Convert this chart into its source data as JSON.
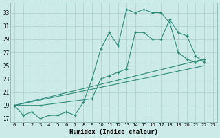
{
  "xlabel": "Humidex (Indice chaleur)",
  "bg_color": "#cceae7",
  "grid_color": "#aacfcc",
  "line_color": "#2e8b7a",
  "xlim": [
    -0.5,
    23.5
  ],
  "ylim": [
    16.5,
    34.5
  ],
  "yticks": [
    17,
    19,
    21,
    23,
    25,
    27,
    29,
    31,
    33
  ],
  "xticks": [
    0,
    1,
    2,
    3,
    4,
    5,
    6,
    7,
    8,
    9,
    10,
    11,
    12,
    13,
    14,
    15,
    16,
    17,
    18,
    19,
    20,
    21,
    22,
    23
  ],
  "series1": {
    "x": [
      0,
      1,
      2,
      3,
      4,
      5,
      6,
      7,
      8,
      9,
      10,
      11,
      12,
      13,
      14,
      15,
      16,
      17,
      18,
      19,
      20,
      21,
      22
    ],
    "y": [
      19,
      17.5,
      18,
      17,
      17.5,
      17.5,
      18,
      17.5,
      19.5,
      23,
      27.5,
      30,
      28,
      33.5,
      33,
      33.5,
      33,
      33,
      31.5,
      27,
      26,
      25.5,
      26
    ]
  },
  "series2": {
    "x": [
      0,
      3,
      9,
      10,
      11,
      12,
      13,
      14,
      15,
      16,
      17,
      18,
      19,
      20,
      21,
      22
    ],
    "y": [
      19,
      19,
      20,
      23,
      23.5,
      24,
      24.5,
      30,
      30,
      29,
      29,
      32,
      30,
      29.5,
      26.5,
      25.5
    ]
  },
  "series3": {
    "x": [
      0,
      22
    ],
    "y": [
      19,
      26
    ]
  },
  "series4": {
    "x": [
      0,
      22
    ],
    "y": [
      19,
      25
    ]
  }
}
